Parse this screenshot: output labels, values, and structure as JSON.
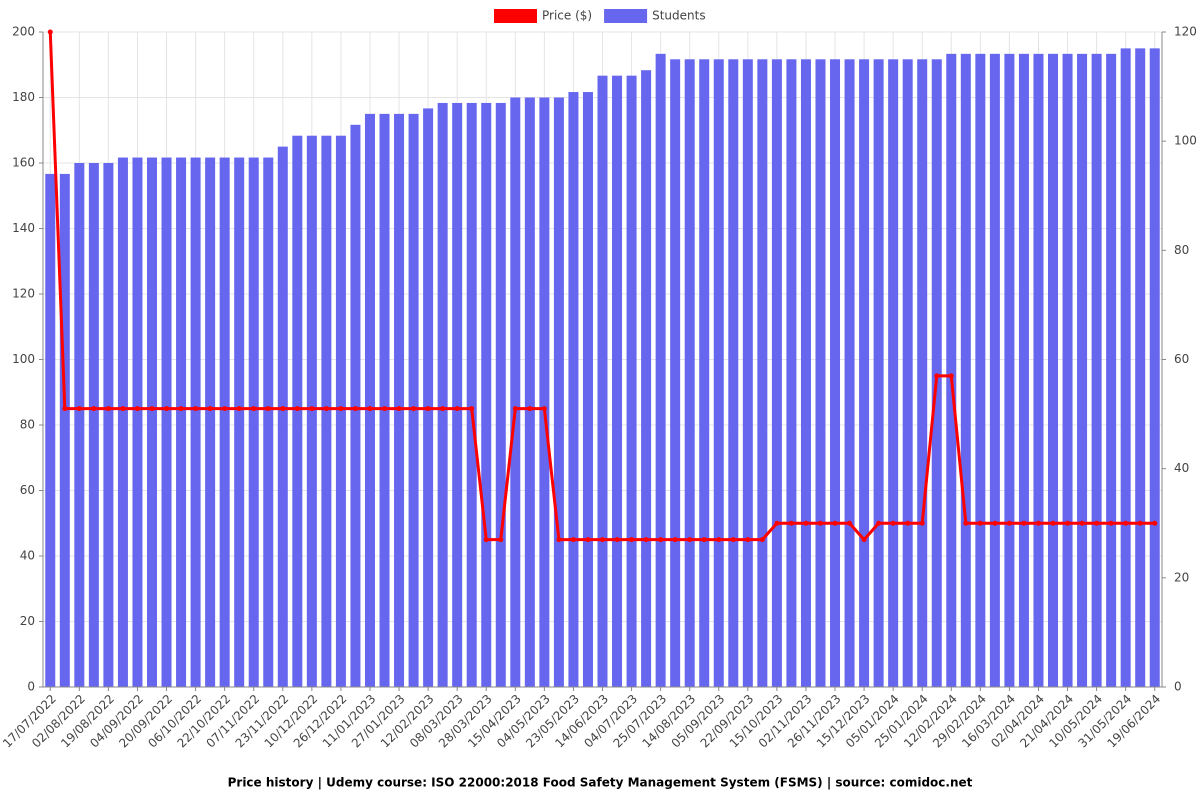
{
  "chart_data": {
    "type": "bar_line",
    "title": "Price history | Udemy course: ISO 22000:2018 Food Safety Management System (FSMS) | source: comidoc.net",
    "categories": [
      "17/07/2022",
      null,
      "02/08/2022",
      null,
      "19/08/2022",
      null,
      "04/09/2022",
      null,
      "20/09/2022",
      null,
      "06/10/2022",
      null,
      "22/10/2022",
      null,
      "07/11/2022",
      null,
      "23/11/2022",
      null,
      "10/12/2022",
      null,
      "26/12/2022",
      null,
      "11/01/2023",
      null,
      "27/01/2023",
      null,
      "12/02/2023",
      null,
      "08/03/2023",
      null,
      "28/03/2023",
      null,
      "15/04/2023",
      null,
      "04/05/2023",
      null,
      "23/05/2023",
      null,
      "14/06/2023",
      null,
      "04/07/2023",
      null,
      "25/07/2023",
      null,
      "14/08/2023",
      null,
      "05/09/2023",
      null,
      "22/09/2023",
      null,
      "15/10/2023",
      null,
      "02/11/2023",
      null,
      "26/11/2023",
      null,
      "15/12/2023",
      null,
      "05/01/2024",
      null,
      "25/01/2024",
      null,
      "12/02/2024",
      null,
      "29/02/2024",
      null,
      "16/03/2024",
      null,
      "02/04/2024",
      null,
      "21/04/2024",
      null,
      "10/05/2024",
      null,
      "31/05/2024",
      null,
      "19/06/2024"
    ],
    "series": [
      {
        "name": "Price ($)",
        "type": "line",
        "color": "#ff0000",
        "axis": "y",
        "values": [
          200,
          85,
          85,
          85,
          85,
          85,
          85,
          85,
          85,
          85,
          85,
          85,
          85,
          85,
          85,
          85,
          85,
          85,
          85,
          85,
          85,
          85,
          85,
          85,
          85,
          85,
          85,
          85,
          85,
          85,
          45,
          45,
          85,
          85,
          85,
          45,
          45,
          45,
          45,
          45,
          45,
          45,
          45,
          45,
          45,
          45,
          45,
          45,
          45,
          45,
          50,
          50,
          50,
          50,
          50,
          50,
          45,
          50,
          50,
          50,
          50,
          95,
          95,
          50,
          50,
          50,
          50,
          50,
          50,
          50,
          50,
          50,
          50,
          50,
          50,
          50,
          50
        ]
      },
      {
        "name": "Students",
        "type": "bar",
        "color": "#6666ee",
        "axis": "y2",
        "values": [
          94,
          94,
          96,
          96,
          96,
          97,
          97,
          97,
          97,
          97,
          97,
          97,
          97,
          97,
          97,
          97,
          99,
          101,
          101,
          101,
          101,
          103,
          105,
          105,
          105,
          105,
          106,
          107,
          107,
          107,
          107,
          107,
          108,
          108,
          108,
          108,
          109,
          109,
          112,
          112,
          112,
          113,
          116,
          115,
          115,
          115,
          115,
          115,
          115,
          115,
          115,
          115,
          115,
          115,
          115,
          115,
          115,
          115,
          115,
          115,
          115,
          115,
          116,
          116,
          116,
          116,
          116,
          116,
          116,
          116,
          116,
          116,
          116,
          116,
          117,
          117,
          117
        ]
      }
    ],
    "ylim": [
      0,
      200
    ],
    "yticks": [
      0,
      20,
      40,
      60,
      80,
      100,
      120,
      140,
      160,
      180,
      200
    ],
    "y2lim": [
      0,
      120
    ],
    "y2ticks": [
      0,
      20,
      40,
      60,
      80,
      100,
      120
    ],
    "grid": true,
    "legend": "top"
  }
}
